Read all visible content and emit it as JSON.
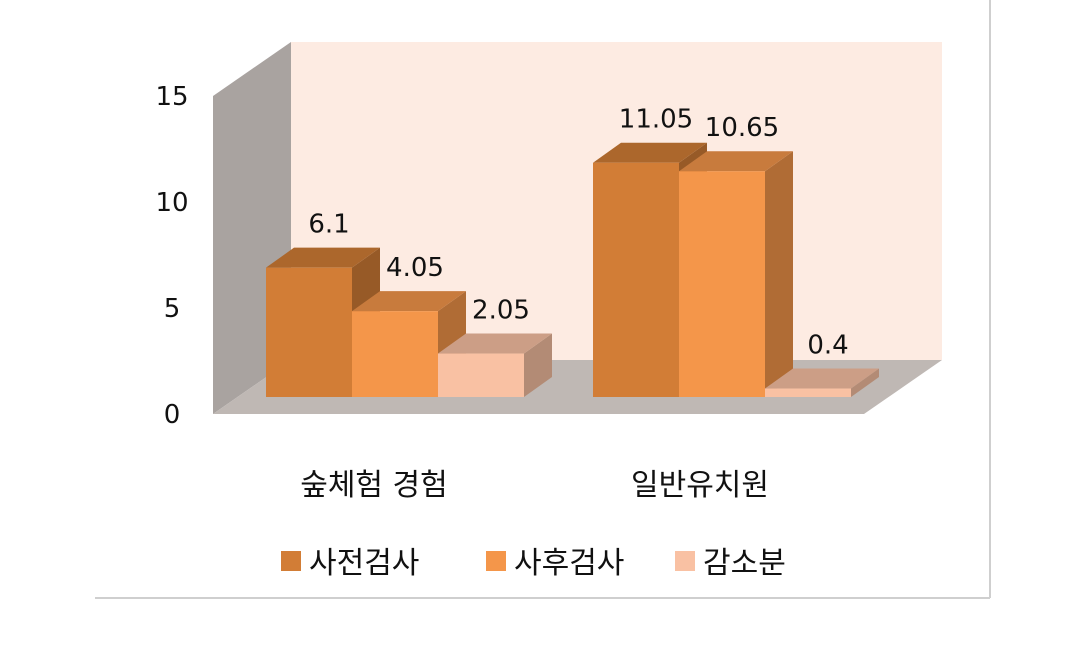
{
  "chart_data": {
    "type": "bar",
    "title": "",
    "xlabel": "",
    "ylabel": "",
    "categories": [
      "숲체험 경험",
      "일반유치원"
    ],
    "series": [
      {
        "name": "사전검사",
        "values": [
          6.1,
          11.05
        ],
        "labels": [
          "6.1",
          "11.05"
        ],
        "color": "#d27d36"
      },
      {
        "name": "사후검사",
        "values": [
          4.05,
          10.65
        ],
        "labels": [
          "4.05",
          "10.65"
        ],
        "color": "#f4964a"
      },
      {
        "name": "감소분",
        "values": [
          2.05,
          0.4
        ],
        "labels": [
          "2.05",
          "0.4"
        ],
        "color": "#f9c1a3"
      }
    ],
    "ylim": [
      0,
      15
    ],
    "yticks": [
      "0",
      "5",
      "10",
      "15"
    ],
    "grid": false,
    "legend": "bottom",
    "style": "3d-clustered-column",
    "colors": {
      "back_wall": "#fdebe2",
      "side_wall": "#a9a3a0",
      "floor": "#bfb8b4",
      "frame": "#cfcfcf"
    }
  }
}
